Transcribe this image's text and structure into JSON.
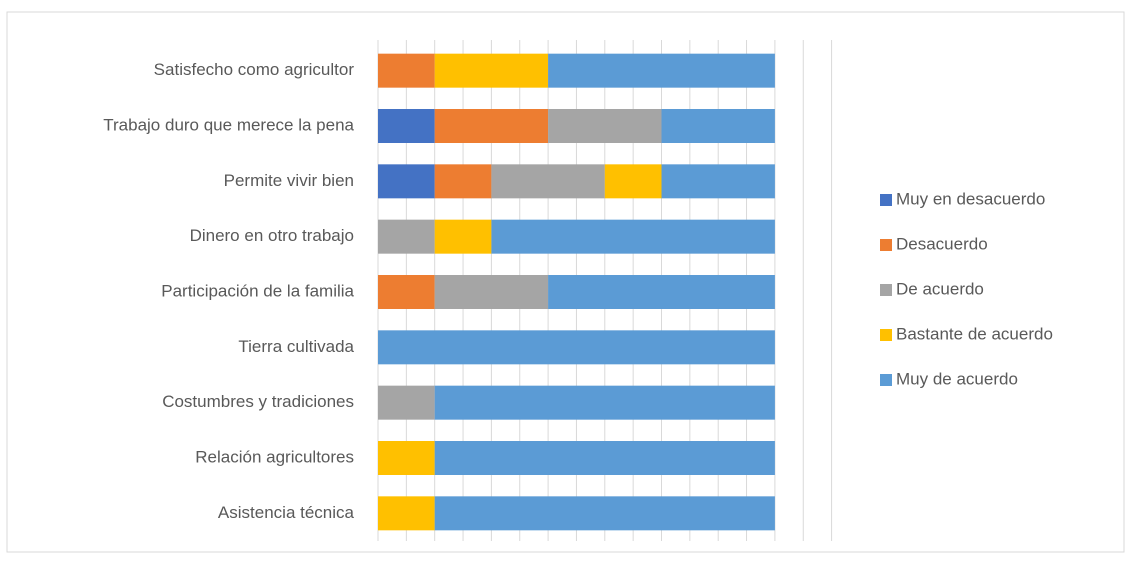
{
  "chart_data": {
    "type": "stacked-bar-horizontal",
    "categories": [
      "Satisfecho como agricultor",
      "Trabajo duro  que merece la pena",
      "Permite vivir bien",
      "Dinero en otro trabajo ",
      "Participación de la familia",
      "Tierra cultivada",
      "Costumbres y tradiciones",
      "Relación agricultores",
      "Asistencia técnica "
    ],
    "series": [
      {
        "name": "Muy en desacuerdo",
        "color": "#4472c4",
        "values": [
          0,
          1,
          1,
          0,
          0,
          0,
          0,
          0,
          0
        ]
      },
      {
        "name": "Desacuerdo",
        "color": "#ed7d31",
        "values": [
          1,
          2,
          1,
          0,
          1,
          0,
          0,
          0,
          0
        ]
      },
      {
        "name": "De acuerdo",
        "color": "#a5a5a5",
        "values": [
          0,
          2,
          2,
          1,
          2,
          0,
          1,
          0,
          0
        ]
      },
      {
        "name": "Bastante de acuerdo",
        "color": "#ffc000",
        "values": [
          2,
          0,
          1,
          1,
          0,
          0,
          0,
          1,
          1
        ]
      },
      {
        "name": "Muy de acuerdo",
        "color": "#5b9bd5",
        "values": [
          4,
          2,
          2,
          5,
          4,
          7,
          6,
          6,
          6
        ]
      }
    ],
    "xlim": [
      0,
      8
    ],
    "xticks": [
      0,
      0.5,
      1,
      1.5,
      2,
      2.5,
      3,
      3.5,
      4,
      4.5,
      5,
      5.5,
      6,
      6.5,
      7,
      7.5,
      8
    ],
    "grid": true,
    "legend": "right"
  }
}
